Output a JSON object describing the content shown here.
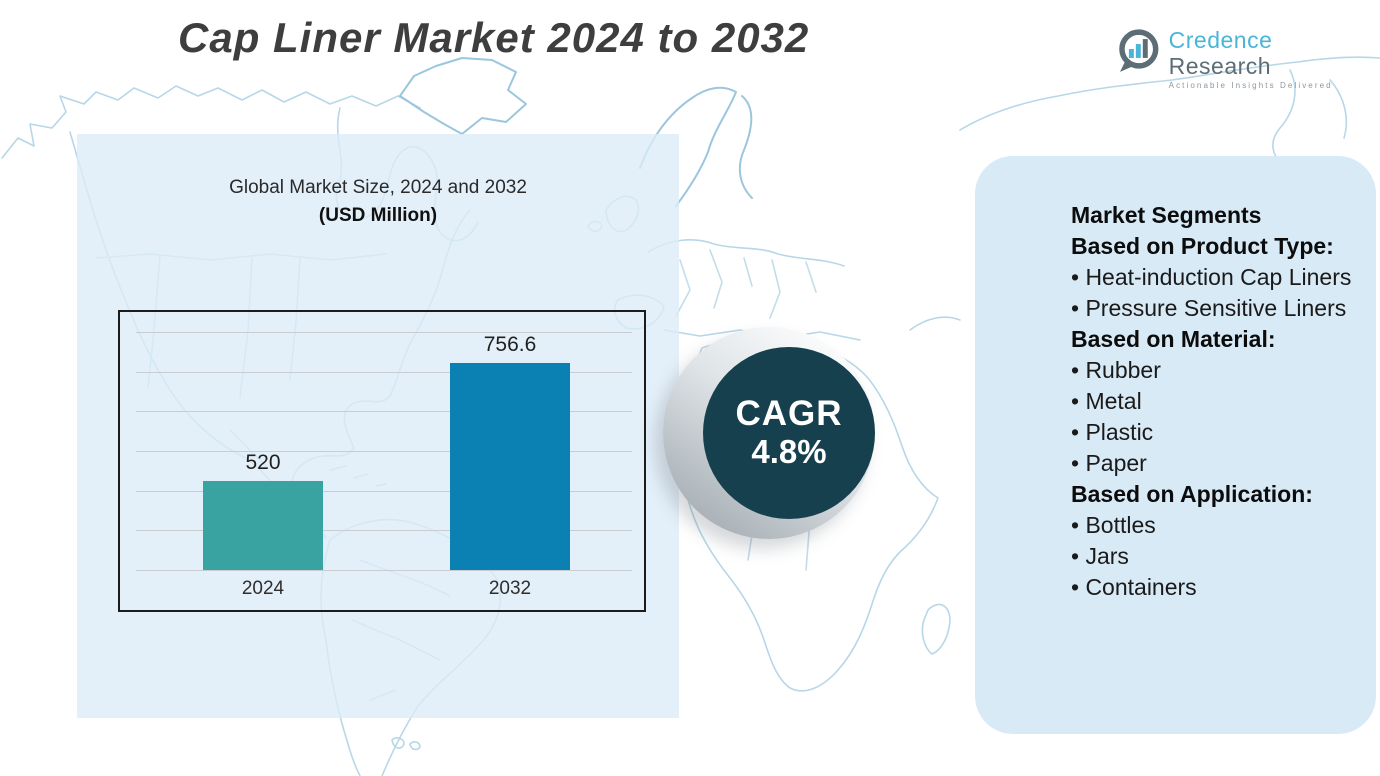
{
  "page": {
    "title": "Cap Liner Market 2024 to 2032"
  },
  "logo": {
    "name_primary": "Credence",
    "name_secondary": "Research",
    "tagline": "Actionable Insights Delivered",
    "accent_color": "#4ab5d8",
    "gray_color": "#5d6d76"
  },
  "chart_panel": {
    "title_line1": "Global Market Size, 2024 and 2032",
    "title_line2": "(USD Million)"
  },
  "chart_data": {
    "type": "bar",
    "title": "Global Market Size, 2024 and 2032",
    "subtitle": "(USD Million)",
    "unit": "USD Million",
    "categories": [
      "2024",
      "2032"
    ],
    "values": [
      520,
      756.6
    ],
    "labels": [
      "520",
      "756.6"
    ],
    "bar_colors": [
      "#38a3a0",
      "#0a81b2"
    ],
    "ylim": [
      340,
      820
    ],
    "gridlines": 7,
    "grid": true,
    "legend": false
  },
  "cagr": {
    "label": "CAGR",
    "value": "4.8%",
    "circle_color": "#17404f",
    "text_color": "#ffffff"
  },
  "segments": {
    "lines": [
      {
        "style": "heading",
        "text": "Market Segments"
      },
      {
        "style": "heading",
        "text": "Based on Product Type:"
      },
      {
        "style": "item",
        "text": "• Heat-induction Cap Liners"
      },
      {
        "style": "item",
        "text": "• Pressure Sensitive Liners"
      },
      {
        "style": "heading",
        "text": "Based on Material:"
      },
      {
        "style": "item",
        "text": "• Rubber"
      },
      {
        "style": "item",
        "text": "• Metal"
      },
      {
        "style": "item",
        "text": "• Plastic"
      },
      {
        "style": "item",
        "text": "• Paper"
      },
      {
        "style": "heading",
        "text": "Based on Application:"
      },
      {
        "style": "item",
        "text": "• Bottles"
      },
      {
        "style": "item",
        "text": "• Jars"
      },
      {
        "style": "item",
        "text": "• Containers"
      }
    ]
  }
}
